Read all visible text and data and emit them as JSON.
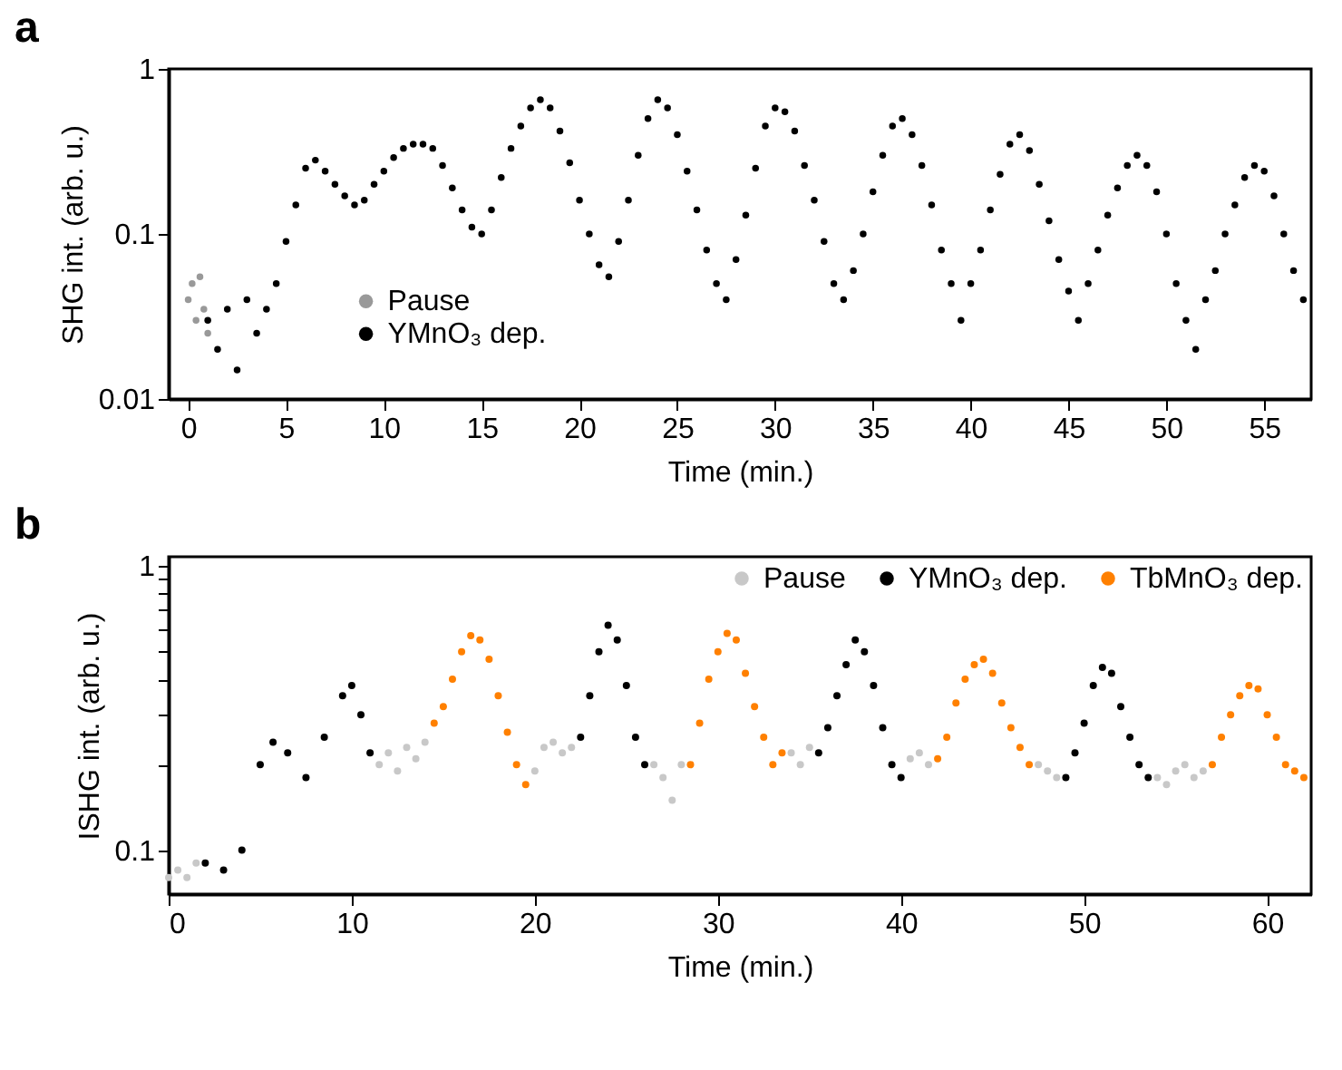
{
  "chart_data": [
    {
      "type": "scatter",
      "title": "a",
      "xlabel": "Time (min.)",
      "ylabel": "SHG int. (arb. u.)",
      "log": "y",
      "marker": "circle",
      "legend": "bottom left",
      "xlim": [
        -1,
        57.4
      ],
      "ylim": [
        0.01,
        1
      ],
      "xticks": [
        0,
        5,
        10,
        15,
        20,
        25,
        30,
        35,
        40,
        45,
        50,
        55
      ],
      "yticks": [
        0.01,
        0.1,
        1
      ],
      "series": [
        {
          "name": "Pause",
          "color": "#999999",
          "x": [
            0,
            0.2,
            0.4,
            0.6,
            0.8,
            1.0
          ],
          "values": [
            0.04,
            0.05,
            0.03,
            0.055,
            0.035,
            0.025
          ]
        },
        {
          "name": "YMnO₃ dep.",
          "color": "#000000",
          "x": [
            1.0,
            1.5,
            2.0,
            2.5,
            3.0,
            3.5,
            4.0,
            4.5,
            5.0,
            5.5,
            6.0,
            6.5,
            7.0,
            7.5,
            8.0,
            8.5,
            9.0,
            9.5,
            10.0,
            10.5,
            11.0,
            11.5,
            12.0,
            12.5,
            13.0,
            13.5,
            14.0,
            14.5,
            15.0,
            15.5,
            16.0,
            16.5,
            17.0,
            17.5,
            18.0,
            18.5,
            19.0,
            19.5,
            20.0,
            20.5,
            21.0,
            21.5,
            22.0,
            22.5,
            23.0,
            23.5,
            24.0,
            24.5,
            25.0,
            25.5,
            26.0,
            26.5,
            27.0,
            27.5,
            28.0,
            28.5,
            29.0,
            29.5,
            30.0,
            30.5,
            31.0,
            31.5,
            32.0,
            32.5,
            33.0,
            33.5,
            34.0,
            34.5,
            35.0,
            35.5,
            36.0,
            36.5,
            37.0,
            37.5,
            38.0,
            38.5,
            39.0,
            39.5,
            40.0,
            40.5,
            41.0,
            41.5,
            42.0,
            42.5,
            43.0,
            43.5,
            44.0,
            44.5,
            45.0,
            45.5,
            46.0,
            46.5,
            47.0,
            47.5,
            48.0,
            48.5,
            49.0,
            49.5,
            50.0,
            50.5,
            51.0,
            51.5,
            52.0,
            52.5,
            53.0,
            53.5,
            54.0,
            54.5,
            55.0,
            55.5,
            56.0,
            56.5,
            57.0
          ],
          "values": [
            0.03,
            0.02,
            0.035,
            0.015,
            0.04,
            0.025,
            0.035,
            0.05,
            0.09,
            0.15,
            0.25,
            0.28,
            0.24,
            0.2,
            0.17,
            0.15,
            0.16,
            0.2,
            0.24,
            0.29,
            0.33,
            0.35,
            0.35,
            0.33,
            0.26,
            0.19,
            0.14,
            0.11,
            0.1,
            0.14,
            0.22,
            0.33,
            0.45,
            0.58,
            0.65,
            0.58,
            0.42,
            0.27,
            0.16,
            0.1,
            0.065,
            0.055,
            0.09,
            0.16,
            0.3,
            0.5,
            0.65,
            0.58,
            0.4,
            0.24,
            0.14,
            0.08,
            0.05,
            0.04,
            0.07,
            0.13,
            0.25,
            0.45,
            0.58,
            0.55,
            0.42,
            0.26,
            0.16,
            0.09,
            0.05,
            0.04,
            0.06,
            0.1,
            0.18,
            0.3,
            0.45,
            0.5,
            0.4,
            0.26,
            0.15,
            0.08,
            0.05,
            0.03,
            0.05,
            0.08,
            0.14,
            0.23,
            0.35,
            0.4,
            0.32,
            0.2,
            0.12,
            0.07,
            0.045,
            0.03,
            0.05,
            0.08,
            0.13,
            0.19,
            0.26,
            0.3,
            0.26,
            0.18,
            0.1,
            0.05,
            0.03,
            0.02,
            0.04,
            0.06,
            0.1,
            0.15,
            0.22,
            0.26,
            0.24,
            0.17,
            0.1,
            0.06,
            0.04
          ]
        }
      ]
    },
    {
      "type": "scatter",
      "title": "b",
      "xlabel": "Time (min.)",
      "ylabel": "ISHG int. (arb. u.)",
      "log": "y",
      "marker": "circle",
      "legend": "top right",
      "xlim": [
        0,
        62.4
      ],
      "ylim": [
        0.07,
        1.08
      ],
      "xticks": [
        0,
        10,
        20,
        30,
        40,
        50,
        60
      ],
      "yticks": [
        0.1,
        {
          "value": 0.2,
          "label": null
        },
        {
          "value": 0.3,
          "label": null
        },
        {
          "value": 0.4,
          "label": null
        },
        {
          "value": 0.5,
          "label": null
        },
        {
          "value": 0.6,
          "label": null
        },
        {
          "value": 0.7,
          "label": null
        },
        {
          "value": 0.8,
          "label": null
        },
        {
          "value": 0.9,
          "label": null
        },
        1
      ],
      "series": [
        {
          "name": "Pause",
          "color": "#c8c8c8",
          "x": [
            0,
            0.5,
            1,
            1.5,
            11.5,
            12,
            12.5,
            13,
            13.5,
            14,
            20,
            20.5,
            21,
            21.5,
            22,
            26.5,
            27,
            27.5,
            28,
            34,
            34.5,
            35,
            40.5,
            41,
            41.5,
            47.5,
            48,
            48.5,
            54,
            54.5,
            55,
            55.5,
            56,
            56.5
          ],
          "values": [
            0.08,
            0.085,
            0.08,
            0.09,
            0.2,
            0.22,
            0.19,
            0.23,
            0.21,
            0.24,
            0.19,
            0.23,
            0.24,
            0.22,
            0.23,
            0.2,
            0.18,
            0.15,
            0.2,
            0.22,
            0.2,
            0.23,
            0.21,
            0.22,
            0.2,
            0.2,
            0.19,
            0.18,
            0.18,
            0.17,
            0.19,
            0.2,
            0.18,
            0.19
          ]
        },
        {
          "name": "YMnO₃ dep.",
          "color": "#000000",
          "x": [
            2,
            3,
            4,
            5,
            5.7,
            6.5,
            7.5,
            8.5,
            9.5,
            10,
            10.5,
            11,
            22.5,
            23,
            23.5,
            24,
            24.5,
            25,
            25.5,
            26,
            35.5,
            36,
            36.5,
            37,
            37.5,
            38,
            38.5,
            39,
            39.5,
            40,
            49,
            49.5,
            50,
            50.5,
            51,
            51.5,
            52,
            52.5,
            53,
            53.5
          ],
          "values": [
            0.09,
            0.085,
            0.1,
            0.2,
            0.24,
            0.22,
            0.18,
            0.25,
            0.35,
            0.38,
            0.3,
            0.22,
            0.25,
            0.35,
            0.5,
            0.62,
            0.55,
            0.38,
            0.25,
            0.2,
            0.22,
            0.27,
            0.35,
            0.45,
            0.55,
            0.5,
            0.38,
            0.27,
            0.2,
            0.18,
            0.18,
            0.22,
            0.28,
            0.38,
            0.44,
            0.42,
            0.32,
            0.25,
            0.2,
            0.18
          ]
        },
        {
          "name": "TbMnO₃ dep.",
          "color": "#ff8000",
          "x": [
            14.5,
            15,
            15.5,
            16,
            16.5,
            17,
            17.5,
            18,
            18.5,
            19,
            19.5,
            28.5,
            29,
            29.5,
            30,
            30.5,
            31,
            31.5,
            32,
            32.5,
            33,
            33.5,
            42,
            42.5,
            43,
            43.5,
            44,
            44.5,
            45,
            45.5,
            46,
            46.5,
            47,
            57,
            57.5,
            58,
            58.5,
            59,
            59.5,
            60,
            60.5,
            61,
            61.5,
            62
          ],
          "values": [
            0.28,
            0.32,
            0.4,
            0.5,
            0.57,
            0.55,
            0.47,
            0.35,
            0.26,
            0.2,
            0.17,
            0.2,
            0.28,
            0.4,
            0.5,
            0.58,
            0.55,
            0.42,
            0.32,
            0.25,
            0.2,
            0.22,
            0.21,
            0.25,
            0.33,
            0.4,
            0.45,
            0.47,
            0.42,
            0.33,
            0.27,
            0.23,
            0.2,
            0.2,
            0.25,
            0.3,
            0.35,
            0.38,
            0.37,
            0.3,
            0.25,
            0.2,
            0.19,
            0.18
          ]
        }
      ]
    }
  ]
}
